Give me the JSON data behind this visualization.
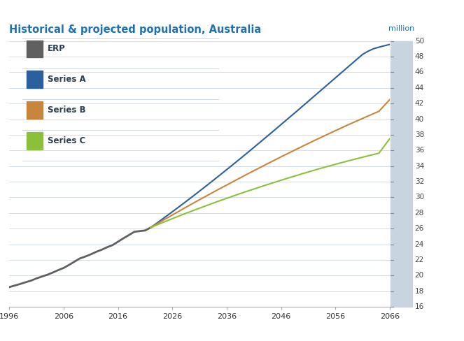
{
  "title": "Historical & projected population, Australia",
  "ylabel": "million",
  "xlim": [
    1996,
    2066
  ],
  "ylim": [
    16,
    50
  ],
  "yticks": [
    16,
    18,
    20,
    22,
    24,
    26,
    28,
    30,
    32,
    34,
    36,
    38,
    40,
    42,
    44,
    46,
    48,
    50
  ],
  "xticks": [
    1996,
    2006,
    2016,
    2026,
    2036,
    2046,
    2056,
    2066
  ],
  "background_color": "#ffffff",
  "grid_color": "#d4dce6",
  "right_band_color": "#c8d4df",
  "title_color": "#2070b4",
  "title_fontsize": 10.5,
  "series": {
    "ERP": {
      "color": "#606060",
      "linewidth": 2.0,
      "x": [
        1996,
        1997,
        1998,
        1999,
        2000,
        2001,
        2002,
        2003,
        2004,
        2005,
        2006,
        2007,
        2008,
        2009,
        2010,
        2011,
        2012,
        2013,
        2014,
        2015,
        2016,
        2017,
        2018,
        2019,
        2020,
        2021,
        2022
      ],
      "y": [
        18.53,
        18.73,
        18.93,
        19.15,
        19.36,
        19.64,
        19.88,
        20.11,
        20.39,
        20.7,
        20.98,
        21.37,
        21.79,
        22.2,
        22.44,
        22.72,
        23.04,
        23.31,
        23.63,
        23.9,
        24.33,
        24.77,
        25.18,
        25.6,
        25.69,
        25.77,
        26.14
      ]
    },
    "Series A": {
      "color": "#2c5f9e",
      "linewidth": 1.5,
      "x": [
        2022,
        2023,
        2024,
        2025,
        2026,
        2027,
        2028,
        2029,
        2030,
        2031,
        2032,
        2033,
        2034,
        2035,
        2036,
        2037,
        2038,
        2039,
        2040,
        2041,
        2042,
        2043,
        2044,
        2045,
        2046,
        2047,
        2048,
        2049,
        2050,
        2051,
        2052,
        2053,
        2054,
        2055,
        2056,
        2057,
        2058,
        2059,
        2060,
        2061,
        2062,
        2063,
        2064,
        2065,
        2066
      ],
      "y": [
        26.14,
        26.64,
        27.14,
        27.65,
        28.16,
        28.68,
        29.2,
        29.73,
        30.26,
        30.8,
        31.34,
        31.89,
        32.44,
        32.99,
        33.55,
        34.11,
        34.67,
        35.24,
        35.81,
        36.39,
        36.97,
        37.55,
        38.13,
        38.72,
        39.31,
        39.9,
        40.49,
        41.08,
        41.68,
        42.28,
        42.88,
        43.48,
        44.08,
        44.68,
        45.28,
        45.88,
        46.48,
        47.08,
        47.68,
        48.28,
        48.68,
        49.0,
        49.2,
        49.38,
        49.55
      ]
    },
    "Series B": {
      "color": "#c8853c",
      "linewidth": 1.5,
      "x": [
        2022,
        2024,
        2026,
        2028,
        2030,
        2032,
        2034,
        2036,
        2038,
        2040,
        2042,
        2044,
        2046,
        2048,
        2050,
        2052,
        2054,
        2056,
        2058,
        2060,
        2062,
        2064,
        2066
      ],
      "y": [
        26.14,
        26.95,
        27.75,
        28.54,
        29.32,
        30.08,
        30.84,
        31.58,
        32.32,
        33.05,
        33.77,
        34.48,
        35.18,
        35.87,
        36.55,
        37.22,
        37.88,
        38.53,
        39.17,
        39.79,
        40.4,
        41.0,
        42.5
      ]
    },
    "Series C": {
      "color": "#8dc03a",
      "linewidth": 1.5,
      "x": [
        2022,
        2024,
        2026,
        2028,
        2030,
        2032,
        2034,
        2036,
        2038,
        2040,
        2042,
        2044,
        2046,
        2048,
        2050,
        2052,
        2054,
        2056,
        2058,
        2060,
        2062,
        2064,
        2066
      ],
      "y": [
        26.14,
        26.72,
        27.28,
        27.83,
        28.36,
        28.88,
        29.39,
        29.88,
        30.37,
        30.84,
        31.3,
        31.75,
        32.19,
        32.62,
        33.04,
        33.45,
        33.85,
        34.23,
        34.6,
        34.96,
        35.31,
        35.65,
        37.5
      ]
    }
  },
  "legend_items": [
    "ERP",
    "Series A",
    "Series B",
    "Series C"
  ],
  "legend_colors": [
    "#606060",
    "#2c5f9e",
    "#c8853c",
    "#8dc03a"
  ],
  "legend_separator_color": "#d0d8e0",
  "text_color": "#2c3e50",
  "axis_label_color": "#2070b4",
  "tick_color": "#aaaaaa"
}
